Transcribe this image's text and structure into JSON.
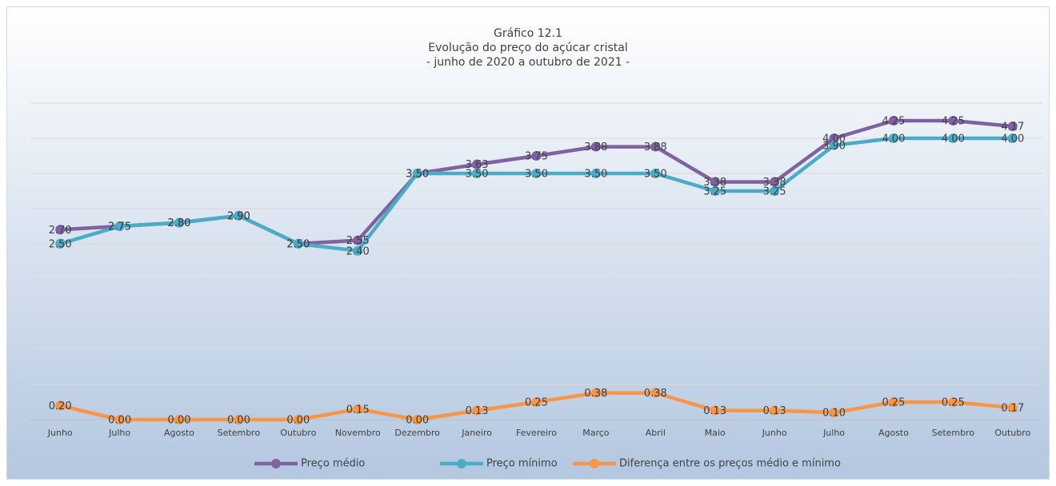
{
  "chart_data": {
    "type": "line",
    "title": [
      "Gráfico 12.1",
      "Evolução do preço do açúcar cristal",
      "- junho de 2020 a outubro de 2021 -"
    ],
    "categories": [
      "Junho",
      "Julho",
      "Agosto",
      "Setembro",
      "Outubro",
      "Novembro",
      "Dezembro",
      "Janeiro",
      "Fevereiro",
      "Março",
      "Abril",
      "Maio",
      "Junho",
      "Julho",
      "Agosto",
      "Setembro",
      "Outubro"
    ],
    "series": [
      {
        "name": "Preço médio",
        "color": "#7f62a1",
        "values": [
          2.7,
          2.75,
          2.8,
          2.9,
          2.5,
          2.55,
          3.5,
          3.63,
          3.75,
          3.88,
          3.88,
          3.38,
          3.38,
          4.0,
          4.25,
          4.25,
          4.17
        ],
        "value_labels": [
          "2.70",
          "2.75",
          "2.80",
          "2.90",
          "2.50",
          "2.55",
          "3.50",
          "3.63",
          "3.75",
          "3.88",
          "3.88",
          "3.38",
          "3.38",
          "4.00",
          "4.25",
          "4.25",
          "4.17"
        ]
      },
      {
        "name": "Preço mínimo",
        "color": "#4bacc6",
        "values": [
          2.5,
          2.75,
          2.8,
          2.9,
          2.5,
          2.4,
          3.5,
          3.5,
          3.5,
          3.5,
          3.5,
          3.25,
          3.25,
          3.9,
          4.0,
          4.0,
          4.0
        ],
        "value_labels": [
          "2.50",
          "2.75",
          "2.80",
          "2.90",
          "2.50",
          "2.40",
          "3.50",
          "3.50",
          "3.50",
          "3.50",
          "3.50",
          "3.25",
          "3.25",
          "3.90",
          "4.00",
          "4.00",
          "4.00"
        ]
      },
      {
        "name": "Diferença entre os preços médio e mínimo",
        "color": "#f79646",
        "values": [
          0.2,
          0.0,
          0.0,
          0.0,
          0.0,
          0.15,
          0.0,
          0.13,
          0.25,
          0.38,
          0.38,
          0.13,
          0.13,
          0.1,
          0.25,
          0.25,
          0.17
        ],
        "value_labels": [
          "0.20",
          "0.00",
          "0.00",
          "0.00",
          "0.00",
          "0.15",
          "0.00",
          "0.13",
          "0.25",
          "0.38",
          "0.38",
          "0.13",
          "0.13",
          "0.10",
          "0.25",
          "0.25",
          "0.17"
        ]
      }
    ],
    "ylim": [
      0,
      4.5
    ],
    "yticks": [
      0,
      0.5,
      1,
      1.5,
      2,
      2.5,
      3,
      3.5,
      4,
      4.5
    ],
    "grid": true,
    "legend": "bottom"
  }
}
